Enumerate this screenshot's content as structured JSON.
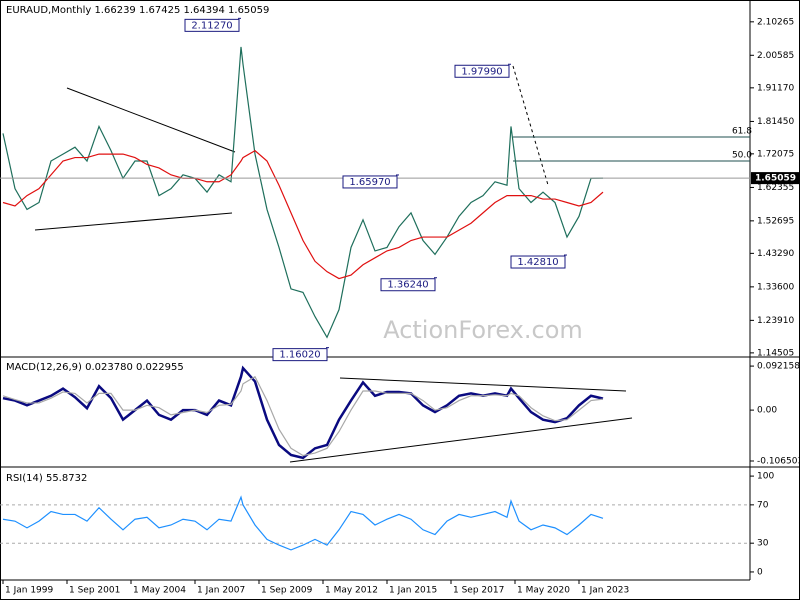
{
  "chart_data": [
    {
      "type": "line",
      "title": "EURAUD,Monthly  1.66239 1.67425 1.64394 1.65059",
      "watermark": "ActionForex.com",
      "x": [
        "1999-01",
        "1999-07",
        "2000-01",
        "2000-07",
        "2001-01",
        "2001-07",
        "2002-01",
        "2002-07",
        "2003-01",
        "2003-07",
        "2004-01",
        "2004-07",
        "2005-01",
        "2005-07",
        "2006-01",
        "2006-07",
        "2007-01",
        "2007-07",
        "2008-01",
        "2008-07",
        "2008-12",
        "2009-01",
        "2009-07",
        "2010-01",
        "2010-07",
        "2011-01",
        "2011-07",
        "2012-01",
        "2012-07",
        "2013-01",
        "2013-07",
        "2014-01",
        "2014-07",
        "2015-01",
        "2015-07",
        "2016-01",
        "2016-07",
        "2017-01",
        "2017-07",
        "2018-01",
        "2018-07",
        "2019-01",
        "2019-07",
        "2020-01",
        "2020-03",
        "2020-07",
        "2021-01",
        "2021-07",
        "2022-01",
        "2022-07",
        "2023-01",
        "2023-07",
        "2024-01"
      ],
      "series": [
        {
          "color": "#1f6f5c",
          "values": [
            1.78,
            1.62,
            1.56,
            1.58,
            1.7,
            1.72,
            1.74,
            1.7,
            1.8,
            1.73,
            1.65,
            1.7,
            1.7,
            1.6,
            1.62,
            1.66,
            1.65,
            1.61,
            1.66,
            1.64,
            2.03,
            1.98,
            1.72,
            1.56,
            1.45,
            1.33,
            1.32,
            1.25,
            1.19,
            1.27,
            1.45,
            1.53,
            1.44,
            1.45,
            1.51,
            1.55,
            1.47,
            1.43,
            1.48,
            1.54,
            1.58,
            1.6,
            1.64,
            1.63,
            1.8,
            1.62,
            1.58,
            1.61,
            1.58,
            1.48,
            1.54,
            1.65,
            1.65059
          ]
        },
        {
          "color": "#e01010",
          "values": [
            1.58,
            1.57,
            1.6,
            1.62,
            1.66,
            1.7,
            1.71,
            1.71,
            1.72,
            1.72,
            1.72,
            1.71,
            1.69,
            1.68,
            1.66,
            1.65,
            1.65,
            1.64,
            1.64,
            1.66,
            1.7,
            1.71,
            1.73,
            1.7,
            1.63,
            1.55,
            1.47,
            1.41,
            1.38,
            1.36,
            1.37,
            1.4,
            1.42,
            1.44,
            1.45,
            1.47,
            1.48,
            1.48,
            1.48,
            1.5,
            1.52,
            1.55,
            1.58,
            1.6,
            1.6,
            1.6,
            1.6,
            1.59,
            1.59,
            1.58,
            1.57,
            1.58,
            1.61
          ]
        }
      ],
      "last_price": 1.65059,
      "annotations": [
        {
          "x": "2008-12",
          "value": 2.1127,
          "label": "2.11270"
        },
        {
          "x": "2020-03",
          "value": 1.9799,
          "label": "1.97990"
        },
        {
          "x": "2015-07",
          "value": 1.6597,
          "label": "1.65970"
        },
        {
          "x": "2017-02",
          "value": 1.3624,
          "label": "1.36240"
        },
        {
          "x": "2012-08",
          "value": 1.1602,
          "label": "1.16020"
        },
        {
          "x": "2022-07",
          "value": 1.4281,
          "label": "1.42810"
        }
      ],
      "fib_labels": [
        "61.8",
        "50.0"
      ],
      "ylim": [
        1.136,
        2.16
      ],
      "yticks": [
        2.10265,
        2.00585,
        {
          "value": 1.9117,
          "label": "1.91170"
        },
        {
          "value": 1.8145,
          "label": "1.81450"
        },
        1.72075,
        1.62355,
        1.52695,
        {
          "value": 1.4329,
          "label": "1.43290"
        },
        {
          "value": 1.336,
          "label": "1.33600"
        },
        {
          "value": 1.2391,
          "label": "1.23910"
        },
        1.14505
      ]
    },
    {
      "type": "line",
      "title": "MACD(12,26,9) 0.023780 0.022955",
      "x": [
        "1999-01",
        "1999-07",
        "2000-01",
        "2000-07",
        "2001-01",
        "2001-07",
        "2002-01",
        "2002-07",
        "2003-01",
        "2003-07",
        "2004-01",
        "2004-07",
        "2005-01",
        "2005-07",
        "2006-01",
        "2006-07",
        "2007-01",
        "2007-07",
        "2008-01",
        "2008-07",
        "2008-12",
        "2009-01",
        "2009-07",
        "2010-01",
        "2010-07",
        "2011-01",
        "2011-07",
        "2012-01",
        "2012-07",
        "2013-01",
        "2013-07",
        "2014-01",
        "2014-07",
        "2015-01",
        "2015-07",
        "2016-01",
        "2016-07",
        "2017-01",
        "2017-07",
        "2018-01",
        "2018-07",
        "2019-01",
        "2019-07",
        "2020-01",
        "2020-03",
        "2020-07",
        "2021-01",
        "2021-07",
        "2022-01",
        "2022-07",
        "2023-01",
        "2023-07",
        "2024-01"
      ],
      "series": [
        {
          "color": "#0a0a80",
          "values": [
            0.025,
            0.02,
            0.01,
            0.02,
            0.03,
            0.045,
            0.027,
            0.004,
            0.05,
            0.025,
            -0.02,
            0,
            0.02,
            -0.01,
            -0.02,
            0,
            0,
            -0.01,
            0.02,
            0.01,
            0.07,
            0.088,
            0.06,
            -0.02,
            -0.073,
            -0.094,
            -0.1,
            -0.08,
            -0.073,
            -0.02,
            0.02,
            0.058,
            0.03,
            0.038,
            0.038,
            0.035,
            0.01,
            -0.004,
            0.01,
            0.03,
            0.035,
            0.03,
            0.035,
            0.03,
            0.045,
            0.025,
            -0.004,
            -0.02,
            -0.025,
            -0.017,
            0.01,
            0.03,
            0.024
          ]
        },
        {
          "color": "#a8a8a8",
          "values": [
            0.03,
            0.022,
            0.015,
            0.015,
            0.025,
            0.038,
            0.035,
            0.015,
            0.035,
            0.035,
            0,
            0,
            0.01,
            0.005,
            -0.01,
            -0.005,
            0,
            -0.005,
            0.01,
            0.012,
            0.04,
            0.055,
            0.07,
            0.02,
            -0.04,
            -0.08,
            -0.095,
            -0.09,
            -0.08,
            -0.045,
            0,
            0.04,
            0.04,
            0.035,
            0.035,
            0.035,
            0.02,
            0,
            0.005,
            0.02,
            0.03,
            0.03,
            0.032,
            0.03,
            0.035,
            0.03,
            0.005,
            -0.012,
            -0.022,
            -0.02,
            0,
            0.02,
            0.023
          ]
        }
      ],
      "ylim": [
        -0.117,
        0.107
      ],
      "yticks": [
        0.092158,
        {
          "value": 0,
          "label": "0.00"
        },
        -0.106503
      ]
    },
    {
      "type": "line",
      "title": "RSI(14) 55.8732",
      "x": [
        "1999-01",
        "1999-07",
        "2000-01",
        "2000-07",
        "2001-01",
        "2001-07",
        "2002-01",
        "2002-07",
        "2003-01",
        "2003-07",
        "2004-01",
        "2004-07",
        "2005-01",
        "2005-07",
        "2006-01",
        "2006-07",
        "2007-01",
        "2007-07",
        "2008-01",
        "2008-07",
        "2008-12",
        "2009-01",
        "2009-07",
        "2010-01",
        "2010-07",
        "2011-01",
        "2011-07",
        "2012-01",
        "2012-07",
        "2013-01",
        "2013-07",
        "2014-01",
        "2014-07",
        "2015-01",
        "2015-07",
        "2016-01",
        "2016-07",
        "2017-01",
        "2017-07",
        "2018-01",
        "2018-07",
        "2019-01",
        "2019-07",
        "2020-01",
        "2020-03",
        "2020-07",
        "2021-01",
        "2021-07",
        "2022-01",
        "2022-07",
        "2023-01",
        "2023-07",
        "2024-01"
      ],
      "series": [
        {
          "color": "#1e90ff",
          "values": [
            55,
            53,
            46,
            53,
            63,
            60,
            60,
            53,
            67,
            55,
            44,
            55,
            57,
            46,
            49,
            55,
            53,
            44,
            55,
            53,
            78,
            70,
            49,
            34,
            28,
            23,
            28,
            34,
            28,
            44,
            63,
            60,
            49,
            55,
            60,
            55,
            44,
            39,
            53,
            60,
            57,
            60,
            63,
            57,
            74,
            53,
            44,
            49,
            46,
            39,
            49,
            60,
            56
          ]
        }
      ],
      "levels": [
        70,
        30
      ],
      "ylim": [
        -8.4,
        107.4
      ],
      "yticks": [
        100,
        70,
        30,
        0
      ],
      "xticks": [
        {
          "value": "1999-01",
          "label": "1 Jan 1999"
        },
        {
          "value": "2001-09",
          "label": "1 Sep 2001"
        },
        {
          "value": "2004-05",
          "label": "1 May 2004"
        },
        {
          "value": "2007-01",
          "label": "1 Jan 2007"
        },
        {
          "value": "2009-09",
          "label": "1 Sep 2009"
        },
        {
          "value": "2012-05",
          "label": "1 May 2012"
        },
        {
          "value": "2015-01",
          "label": "1 Jan 2015"
        },
        {
          "value": "2017-09",
          "label": "1 Sep 2017"
        },
        {
          "value": "2020-05",
          "label": "1 May 2020"
        },
        {
          "value": "2023-01",
          "label": "1 Jan 2023"
        }
      ]
    }
  ]
}
